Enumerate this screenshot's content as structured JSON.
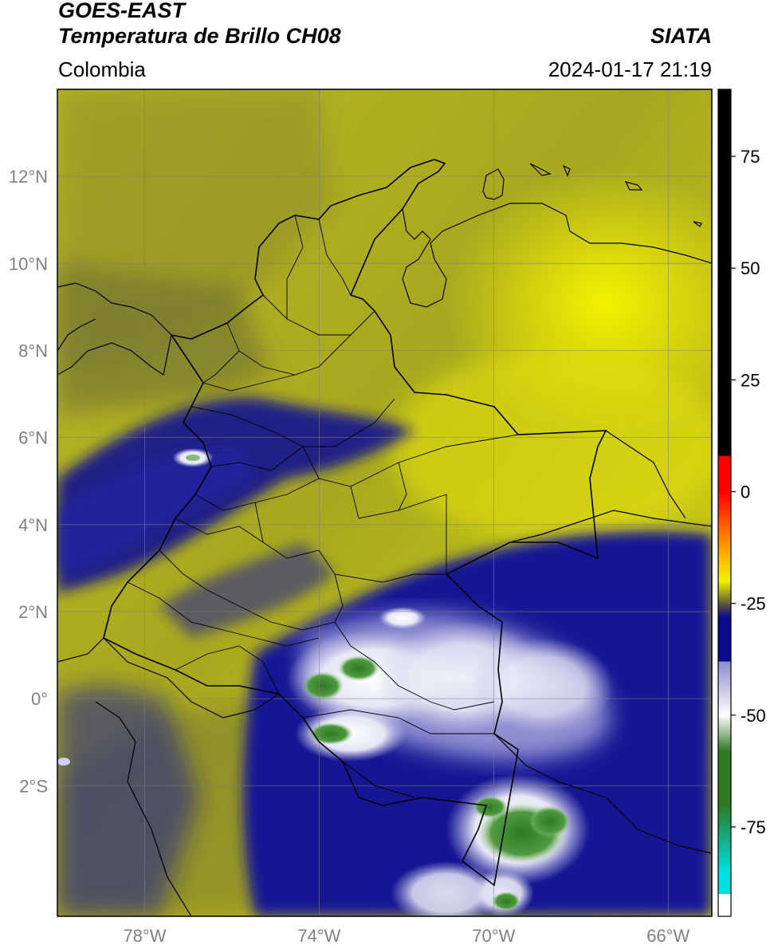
{
  "header": {
    "satellite": "GOES-EAST",
    "product": "Temperatura de Brillo CH08",
    "region": "Colombia",
    "organization": "SIATA",
    "datetime": "2024-01-17 21:19"
  },
  "map": {
    "extent": {
      "lon": [
        -80,
        -65
      ],
      "lat": [
        -5,
        14
      ]
    },
    "lat_ticks": [
      {
        "value": 12,
        "label": "12°N"
      },
      {
        "value": 10,
        "label": "10°N"
      },
      {
        "value": 8,
        "label": "8°N"
      },
      {
        "value": 6,
        "label": "6°N"
      },
      {
        "value": 4,
        "label": "4°N"
      },
      {
        "value": 2,
        "label": "2°N"
      },
      {
        "value": 0,
        "label": "0°"
      },
      {
        "value": -2,
        "label": "2°S"
      }
    ],
    "lon_ticks": [
      {
        "value": -78,
        "label": "78°W"
      },
      {
        "value": -74,
        "label": "74°W"
      },
      {
        "value": -70,
        "label": "70°W"
      },
      {
        "value": -66,
        "label": "66°W"
      }
    ],
    "gridlines": true
  },
  "colorbar": {
    "range": [
      -95,
      90
    ],
    "ticks": [
      {
        "value": 75,
        "label": "75"
      },
      {
        "value": 50,
        "label": "50"
      },
      {
        "value": 25,
        "label": "25"
      },
      {
        "value": 0,
        "label": "0"
      },
      {
        "value": -25,
        "label": "-25"
      },
      {
        "value": -50,
        "label": "-50"
      },
      {
        "value": -75,
        "label": "-75"
      }
    ],
    "colors": {
      "warm_black": "#000000",
      "red": "#ff0000",
      "orange": "#ff9900",
      "yellow": "#f2f200",
      "olive": "#5c5c3a",
      "navy": "#0a0a8c",
      "periwinkle": "#8c8ccc",
      "white": "#ffffff",
      "green": "#2e7a22",
      "cyan": "#00e0e0"
    }
  }
}
